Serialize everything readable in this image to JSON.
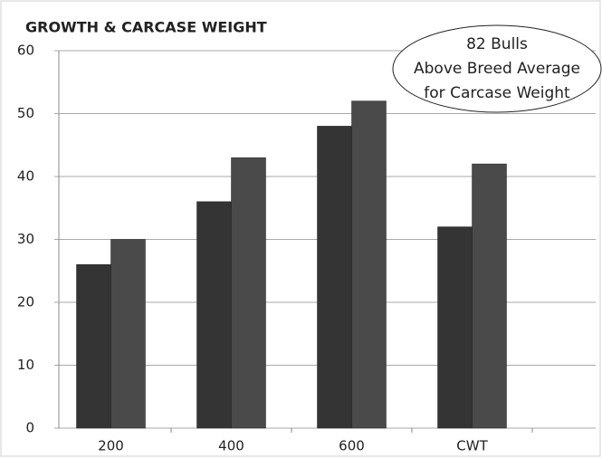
{
  "chart_data": {
    "type": "bar",
    "title": "GROWTH & CARCASE WEIGHT",
    "categories": [
      "200",
      "400",
      "600",
      "CWT"
    ],
    "series": [
      {
        "color": "#343434",
        "values": [
          26,
          36,
          48,
          32
        ]
      },
      {
        "color": "#4a4a4a",
        "values": [
          30,
          43,
          52,
          42
        ]
      }
    ],
    "ylim": [
      0,
      60
    ],
    "yticks": [
      0,
      10,
      20,
      30,
      40,
      50,
      60
    ],
    "grid": true,
    "annotation": [
      "82 Bulls",
      "Above Breed Average",
      "for Carcase Weight"
    ]
  }
}
